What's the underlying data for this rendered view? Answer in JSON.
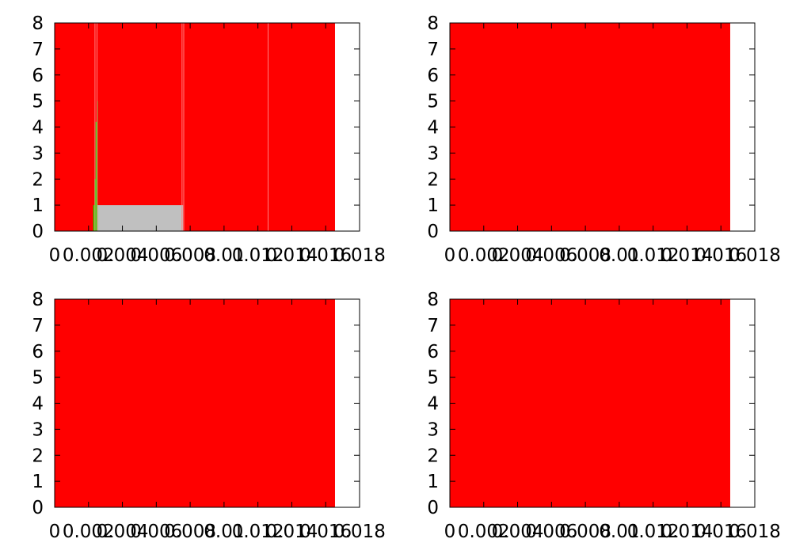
{
  "colors": {
    "primary": "#ff0000",
    "green": "#22dd00",
    "gray": "#c0c0c0",
    "thin_line": "#ff8080",
    "axis": "#000000",
    "background": "#ffffff"
  },
  "chart_data": [
    {
      "type": "area",
      "panel": "top-left",
      "xlim": [
        0,
        0.018
      ],
      "ylim": [
        0,
        8
      ],
      "x_tick_values": [
        0.0,
        0.002,
        0.004,
        0.006,
        0.008,
        0.01,
        0.012,
        0.014,
        0.016,
        0.018
      ],
      "x_tick_labels": [
        "0",
        "0.002",
        "0.004",
        "0.006",
        "0.008",
        "0.01",
        "0.012",
        "0.014",
        "0.016",
        "0.018"
      ],
      "y_tick_labels": [
        "0",
        "1",
        "2",
        "3",
        "4",
        "5",
        "6",
        "7",
        "8"
      ],
      "filled_x_range": [
        0,
        0.01655
      ],
      "background_value": 8,
      "series": [
        {
          "color": "green",
          "points": [
            [
              0.00228,
              0.0
            ],
            [
              0.00228,
              1.0
            ],
            [
              0.00235,
              1.0
            ],
            [
              0.00235,
              2.0
            ],
            [
              0.00242,
              2.0
            ],
            [
              0.00242,
              4.2
            ],
            [
              0.00248,
              4.2
            ],
            [
              0.00248,
              5.0
            ],
            [
              0.00254,
              5.0
            ],
            [
              0.00254,
              1.0
            ],
            [
              0.0026,
              1.0
            ],
            [
              0.0026,
              0.0
            ]
          ]
        },
        {
          "color": "gray",
          "points": [
            [
              0.00254,
              0.0
            ],
            [
              0.00254,
              1.0
            ],
            [
              0.00758,
              1.0
            ],
            [
              0.00758,
              0.0
            ]
          ]
        }
      ],
      "vertical_lines_x": [
        0.00238,
        0.0025,
        0.00752,
        0.00762,
        0.0126
      ]
    },
    {
      "type": "area",
      "panel": "top-right",
      "xlim": [
        0,
        0.018
      ],
      "ylim": [
        0,
        8
      ],
      "x_tick_values": [
        0.0,
        0.002,
        0.004,
        0.006,
        0.008,
        0.01,
        0.012,
        0.014,
        0.016,
        0.018
      ],
      "x_tick_labels": [
        "0",
        "0.002",
        "0.004",
        "0.006",
        "0.008",
        "0.01",
        "0.012",
        "0.014",
        "0.016",
        "0.018"
      ],
      "y_tick_labels": [
        "0",
        "1",
        "2",
        "3",
        "4",
        "5",
        "6",
        "7",
        "8"
      ],
      "filled_x_range": [
        0,
        0.01655
      ],
      "background_value": 8,
      "series": [],
      "vertical_lines_x": []
    },
    {
      "type": "area",
      "panel": "bottom-left",
      "xlim": [
        0,
        0.018
      ],
      "ylim": [
        0,
        8
      ],
      "x_tick_values": [
        0.0,
        0.002,
        0.004,
        0.006,
        0.008,
        0.01,
        0.012,
        0.014,
        0.016,
        0.018
      ],
      "x_tick_labels": [
        "0",
        "0.002",
        "0.004",
        "0.006",
        "0.008",
        "0.01",
        "0.012",
        "0.014",
        "0.016",
        "0.018"
      ],
      "y_tick_labels": [
        "0",
        "1",
        "2",
        "3",
        "4",
        "5",
        "6",
        "7",
        "8"
      ],
      "filled_x_range": [
        0,
        0.01655
      ],
      "background_value": 8,
      "series": [],
      "vertical_lines_x": []
    },
    {
      "type": "area",
      "panel": "bottom-right",
      "xlim": [
        0,
        0.018
      ],
      "ylim": [
        0,
        8
      ],
      "x_tick_values": [
        0.0,
        0.002,
        0.004,
        0.006,
        0.008,
        0.01,
        0.012,
        0.014,
        0.016,
        0.018
      ],
      "x_tick_labels": [
        "0",
        "0.002",
        "0.004",
        "0.006",
        "0.008",
        "0.01",
        "0.012",
        "0.014",
        "0.016",
        "0.018"
      ],
      "y_tick_labels": [
        "0",
        "1",
        "2",
        "3",
        "4",
        "5",
        "6",
        "7",
        "8"
      ],
      "filled_x_range": [
        0,
        0.01655
      ],
      "background_value": 8,
      "series": [],
      "vertical_lines_x": []
    }
  ]
}
